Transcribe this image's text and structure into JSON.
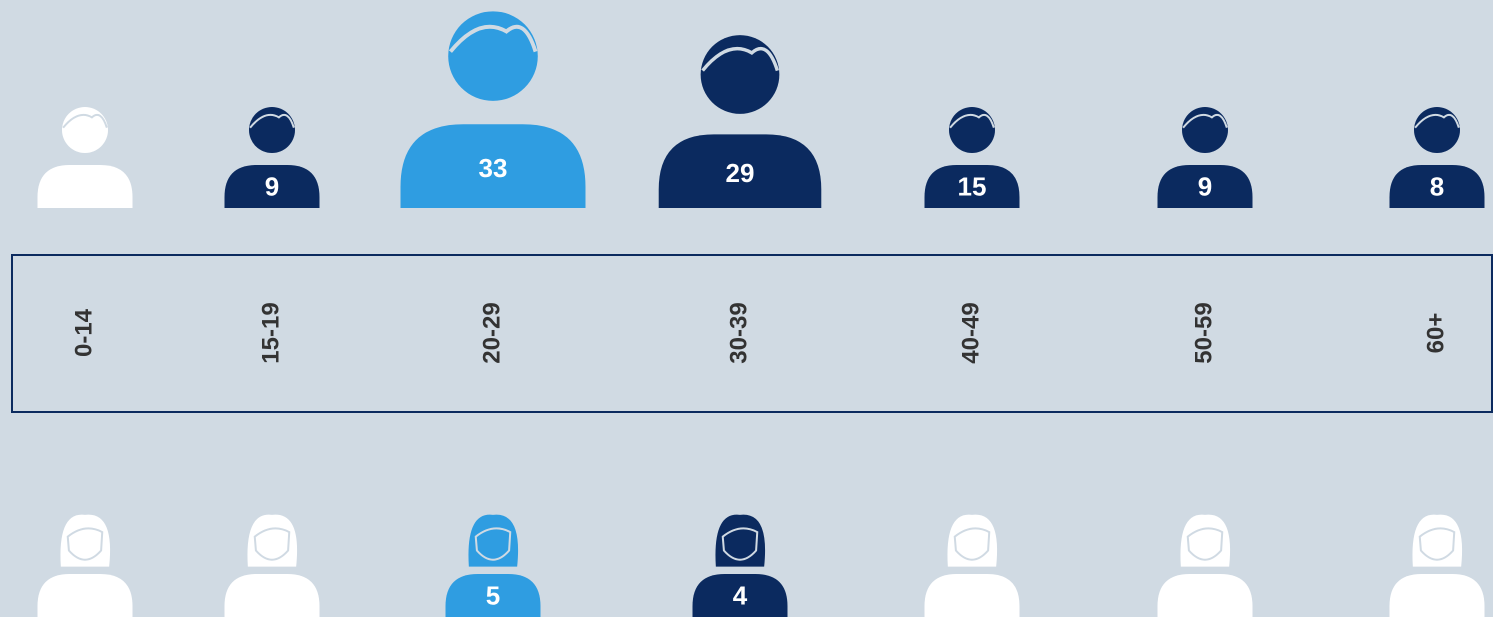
{
  "chart_data": {
    "type": "pictogram",
    "categories": [
      "0-14",
      "15-19",
      "20-29",
      "30-39",
      "40-49",
      "50-59",
      "60+"
    ],
    "series": [
      {
        "name": "Male",
        "values": [
          null,
          9,
          33,
          29,
          15,
          9,
          8
        ]
      },
      {
        "name": "Female",
        "values": [
          null,
          null,
          5,
          4,
          null,
          null,
          null
        ]
      }
    ],
    "color": "#0b2a5f",
    "highlight_color": "#2f9de1",
    "empty_color": "#ffffff"
  }
}
